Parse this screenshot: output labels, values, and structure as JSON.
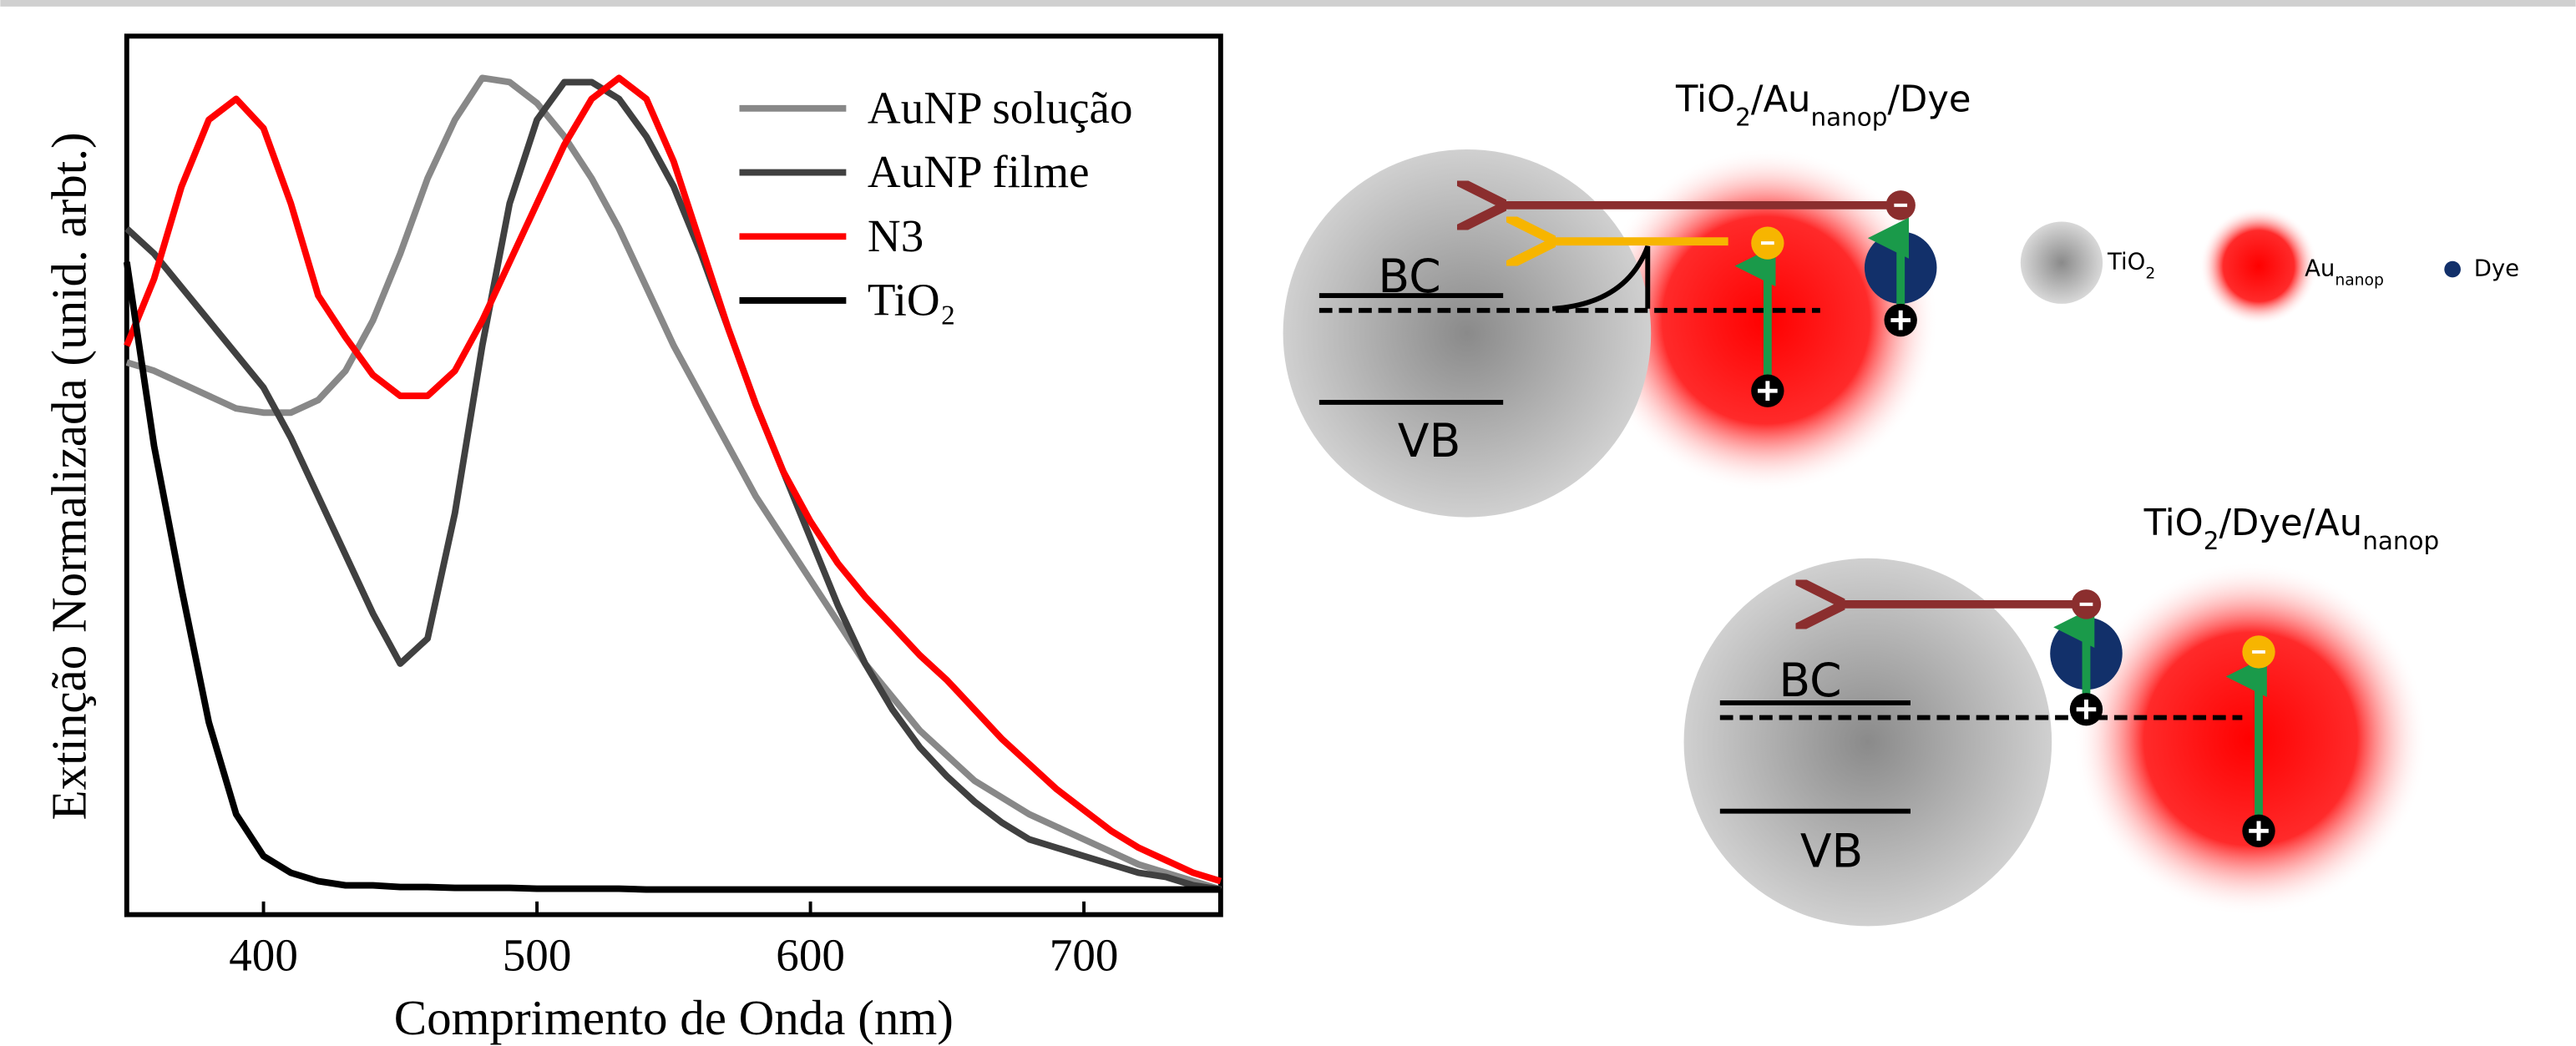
{
  "chart_data": {
    "type": "line",
    "xlabel": "Comprimento de Onda (nm)",
    "ylabel": "Extinção Normalizada (unid. arbt.)",
    "x": [
      350,
      360,
      370,
      380,
      390,
      400,
      410,
      420,
      430,
      440,
      450,
      460,
      470,
      480,
      490,
      500,
      510,
      520,
      530,
      540,
      550,
      560,
      570,
      580,
      590,
      600,
      610,
      620,
      630,
      640,
      650,
      660,
      670,
      680,
      690,
      700,
      710,
      720,
      730,
      740,
      750
    ],
    "xlim": [
      350,
      750
    ],
    "xticks": [
      400,
      500,
      600,
      700
    ],
    "ylim": [
      0,
      1.05
    ],
    "series": [
      {
        "name": "AuNP solução",
        "color": "#888888",
        "values": [
          0.66,
          0.65,
          0.635,
          0.62,
          0.605,
          0.6,
          0.6,
          0.615,
          0.65,
          0.71,
          0.79,
          0.88,
          0.95,
          1.0,
          0.995,
          0.97,
          0.93,
          0.88,
          0.82,
          0.75,
          0.68,
          0.62,
          0.56,
          0.5,
          0.45,
          0.4,
          0.35,
          0.3,
          0.26,
          0.22,
          0.19,
          0.16,
          0.14,
          0.12,
          0.105,
          0.09,
          0.075,
          0.06,
          0.05,
          0.04,
          0.03
        ]
      },
      {
        "name": "AuNP filme",
        "color": "#404040",
        "values": [
          0.82,
          0.79,
          0.75,
          0.71,
          0.67,
          0.63,
          0.57,
          0.5,
          0.43,
          0.36,
          0.3,
          0.33,
          0.48,
          0.68,
          0.85,
          0.95,
          0.995,
          0.995,
          0.975,
          0.93,
          0.87,
          0.79,
          0.7,
          0.61,
          0.53,
          0.45,
          0.37,
          0.3,
          0.245,
          0.2,
          0.165,
          0.135,
          0.11,
          0.09,
          0.08,
          0.07,
          0.06,
          0.05,
          0.045,
          0.035,
          0.03
        ]
      },
      {
        "name": "N3",
        "color": "#ff0000",
        "values": [
          0.68,
          0.76,
          0.87,
          0.95,
          0.975,
          0.94,
          0.85,
          0.74,
          0.69,
          0.645,
          0.62,
          0.62,
          0.65,
          0.71,
          0.78,
          0.85,
          0.92,
          0.975,
          1.0,
          0.975,
          0.9,
          0.8,
          0.7,
          0.61,
          0.53,
          0.47,
          0.42,
          0.38,
          0.345,
          0.31,
          0.28,
          0.245,
          0.21,
          0.18,
          0.15,
          0.125,
          0.1,
          0.08,
          0.065,
          0.05,
          0.04
        ]
      },
      {
        "name": "TiO₂",
        "color": "#000000",
        "values": [
          0.78,
          0.56,
          0.39,
          0.23,
          0.12,
          0.07,
          0.05,
          0.04,
          0.035,
          0.035,
          0.033,
          0.033,
          0.032,
          0.032,
          0.032,
          0.031,
          0.031,
          0.031,
          0.031,
          0.03,
          0.03,
          0.03,
          0.03,
          0.03,
          0.03,
          0.03,
          0.03,
          0.03,
          0.03,
          0.03,
          0.03,
          0.03,
          0.03,
          0.03,
          0.03,
          0.03,
          0.03,
          0.03,
          0.03,
          0.03,
          0.03
        ]
      }
    ]
  },
  "diagram": {
    "top": {
      "title": [
        "TiO",
        "2",
        "/Au",
        "nanop",
        "/Dye"
      ],
      "bc": "BC",
      "vb": "VB"
    },
    "legend": [
      {
        "label": [
          "TiO",
          "2"
        ]
      },
      {
        "label": [
          "Au",
          "nanop"
        ]
      },
      {
        "label": [
          "Dye"
        ]
      }
    ],
    "bottom": {
      "title": [
        "TiO",
        "2",
        "/Dye/Au",
        "nanop"
      ],
      "bc": "BC",
      "vb": "VB"
    }
  }
}
